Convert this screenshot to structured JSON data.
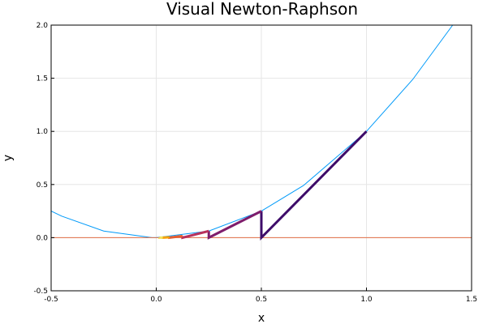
{
  "chart_data": {
    "type": "line",
    "title": "Visual Newton-Raphson",
    "xlabel": "x",
    "ylabel": "y",
    "xlim": [
      -0.5,
      1.5
    ],
    "ylim": [
      -0.5,
      2.0
    ],
    "x_ticks": [
      "-0.5",
      "0.0",
      "0.5",
      "1.0",
      "1.5"
    ],
    "y_ticks": [
      "-0.5",
      "0.0",
      "0.5",
      "1.0",
      "1.5",
      "2.0"
    ],
    "grid": true,
    "legend": "none",
    "curve": {
      "color": "#009AF9",
      "x": [
        -0.5,
        -0.45,
        -0.25,
        -0.02,
        0.0,
        0.25,
        0.5,
        0.7,
        1.0,
        1.22,
        1.41
      ],
      "y": [
        0.25,
        0.2025,
        0.0625,
        0.0004,
        0.0,
        0.0625,
        0.25,
        0.49,
        1.0,
        1.4884,
        2.0
      ]
    },
    "zero_line": {
      "color": "#E26F46",
      "y": 0.0
    },
    "newton_steps": {
      "colors": [
        "#3E0C69",
        "#7E1D6C",
        "#B9315C",
        "#E45E32",
        "#F7A209",
        "#F3E35D"
      ],
      "segments": [
        {
          "x": [
            1.0,
            0.5,
            0.5
          ],
          "y": [
            1.0,
            0.0,
            0.25
          ]
        },
        {
          "x": [
            0.5,
            0.25,
            0.25
          ],
          "y": [
            0.25,
            0.0,
            0.0625
          ]
        },
        {
          "x": [
            0.25,
            0.125,
            0.125
          ],
          "y": [
            0.0625,
            0.0,
            0.015625
          ]
        },
        {
          "x": [
            0.125,
            0.0625,
            0.0625
          ],
          "y": [
            0.015625,
            0.0,
            0.00390625
          ]
        },
        {
          "x": [
            0.0625,
            0.03125,
            0.03125
          ],
          "y": [
            0.00390625,
            0.0,
            0.0009765625
          ]
        },
        {
          "x": [
            0.03125,
            0.015625,
            0.015625
          ],
          "y": [
            0.0009765625,
            0.0,
            0.000244140625
          ]
        }
      ]
    }
  }
}
